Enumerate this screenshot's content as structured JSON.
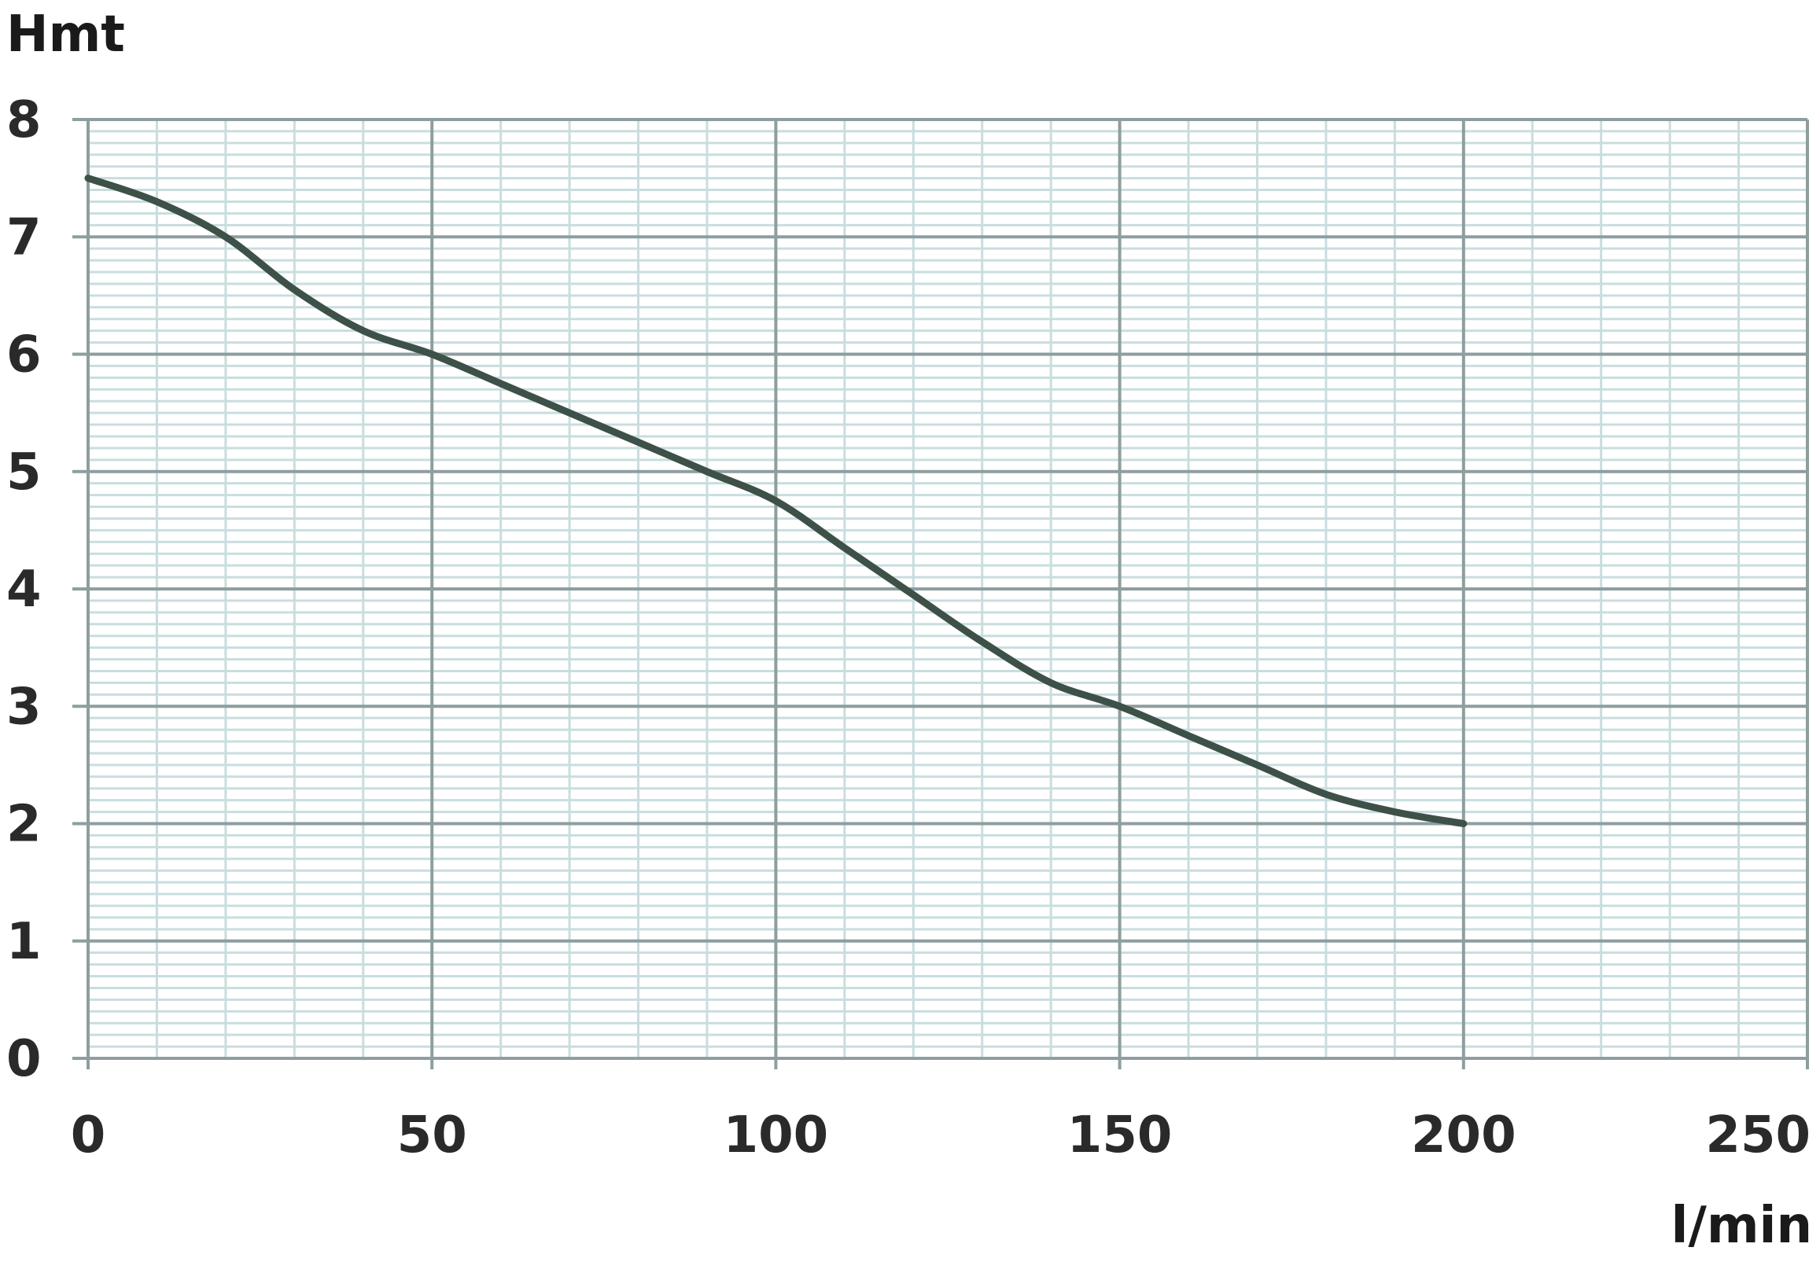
{
  "chart_data": {
    "type": "line",
    "title": "",
    "ylabel": "Hmt",
    "xlabel": "l/min",
    "xlim": [
      0,
      250
    ],
    "ylim": [
      0,
      8
    ],
    "x_ticks": [
      0,
      50,
      100,
      150,
      200,
      250
    ],
    "y_ticks": [
      0,
      1,
      2,
      3,
      4,
      5,
      6,
      7,
      8
    ],
    "grid": true,
    "series": [
      {
        "x": [
          0,
          10,
          20,
          30,
          40,
          50,
          60,
          70,
          80,
          90,
          100,
          110,
          120,
          130,
          140,
          150,
          160,
          170,
          180,
          190,
          200
        ],
        "y": [
          7.5,
          7.3,
          7.0,
          6.55,
          6.2,
          6.0,
          5.75,
          5.5,
          5.25,
          5.0,
          4.75,
          4.35,
          3.95,
          3.55,
          3.2,
          3.0,
          2.75,
          2.5,
          2.25,
          2.1,
          2.0
        ]
      }
    ],
    "colors": {
      "line": "#3d5148",
      "grid_major": "#8e9e9f",
      "grid_minor": "#c9dddf",
      "background": "#ffffff"
    }
  }
}
